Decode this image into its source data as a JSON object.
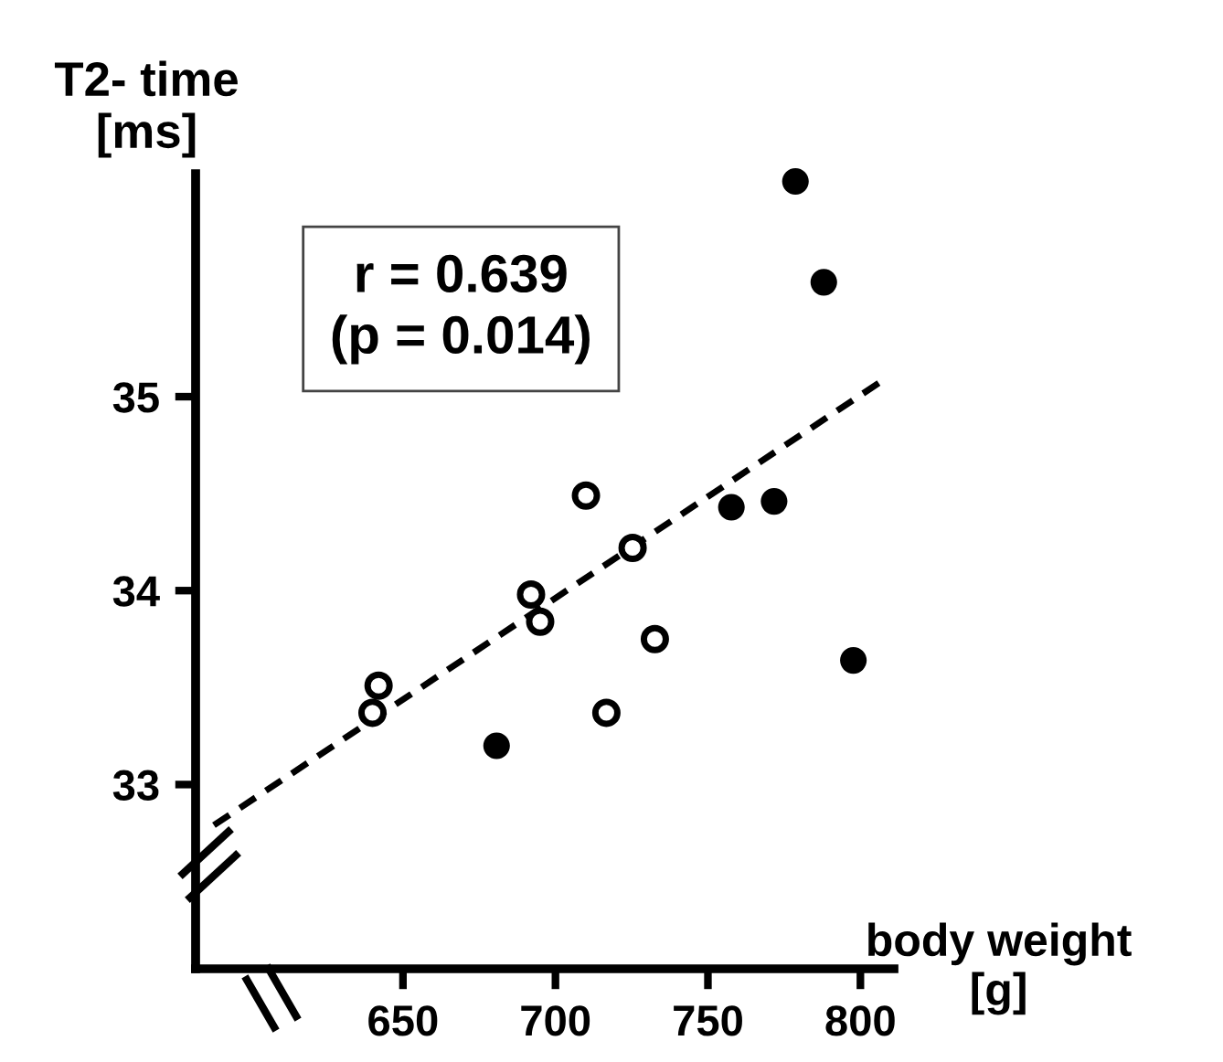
{
  "chart_data": {
    "type": "scatter",
    "ylabel": "T2- time\n[ms]",
    "xlabel": "body weight\n[g]",
    "annotations": [
      "r = 0.639\n(p = 0.014)"
    ],
    "series": [
      {
        "color": "#000000",
        "marker": "circle",
        "x": [
          778.7,
          788,
          757.7,
          771.7,
          797.7,
          680.7
        ],
        "values": [
          36.11,
          35.59,
          34.43,
          34.46,
          33.64,
          33.2
        ]
      },
      {
        "color": "#ffffff",
        "marker": "circle",
        "x": [
          710,
          725.3,
          692,
          695,
          732.6,
          716.7,
          642,
          640
        ],
        "values": [
          34.49,
          34.22,
          33.98,
          33.84,
          33.75,
          33.37,
          33.51,
          33.37
        ]
      },
      {
        "type": "line",
        "color": "#000000",
        "line_style": "dashed",
        "marker": "none",
        "x": [
          588,
          806
        ],
        "values": [
          32.79,
          35.07
        ]
      }
    ],
    "xlim": [
      582,
      811
    ],
    "ylim": [
      32.05,
      36.15
    ],
    "xticks": [
      650,
      700,
      750,
      800
    ],
    "yticks": [
      33,
      34,
      35
    ],
    "grid": false,
    "legend": false
  }
}
